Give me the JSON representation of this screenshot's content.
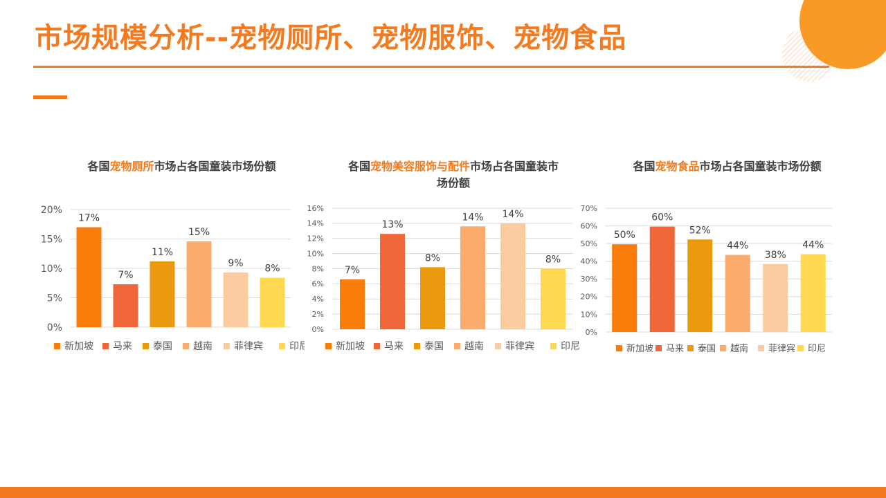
{
  "page": {
    "title": "市场规模分析--宠物厕所、宠物服饰、宠物食品"
  },
  "colors": {
    "accent": "#f47a20",
    "series": [
      "#fa7d0c",
      "#ef6638",
      "#eb9a0d",
      "#fbac6c",
      "#fccca1",
      "#ffd84f"
    ]
  },
  "chart_data": [
    {
      "type": "bar",
      "title_parts": [
        "各国",
        "宠物厕所",
        "市场占各国童装市场份额"
      ],
      "categories": [
        "新加坡",
        "马来",
        "泰国",
        "越南",
        "菲律宾",
        "印尼"
      ],
      "values": [
        17,
        7.3,
        11.2,
        14.6,
        9.3,
        8.4
      ],
      "data_labels": [
        "17%",
        "7%",
        "11%",
        "15%",
        "9%",
        "8%"
      ],
      "yticks": [
        "0%",
        "5%",
        "10%",
        "15%",
        "20%"
      ],
      "ylim": [
        0,
        20
      ],
      "grid": true,
      "legend": "bottom"
    },
    {
      "type": "bar",
      "title_parts": [
        "各国",
        "宠物美容服饰与配件",
        "市场占各国童装市场份额"
      ],
      "categories": [
        "新加坡",
        "马来",
        "泰国",
        "越南",
        "菲律宾",
        "印尼"
      ],
      "values": [
        6.6,
        12.6,
        8.2,
        13.6,
        14,
        8
      ],
      "data_labels": [
        "7%",
        "13%",
        "8%",
        "14%",
        "14%",
        "8%"
      ],
      "yticks": [
        "0%",
        "2%",
        "4%",
        "6%",
        "8%",
        "10%",
        "12%",
        "14%",
        "16%"
      ],
      "ylim": [
        0,
        16
      ],
      "grid": true,
      "legend": "bottom"
    },
    {
      "type": "bar",
      "title_parts": [
        "各国",
        "宠物食品",
        "市场占各国童装市场份额"
      ],
      "categories": [
        "新加坡",
        "马来",
        "泰国",
        "越南",
        "菲律宾",
        "印尼"
      ],
      "values": [
        49.6,
        59.6,
        52.3,
        43.6,
        38.4,
        44
      ],
      "data_labels": [
        "50%",
        "60%",
        "52%",
        "44%",
        "38%",
        "44%"
      ],
      "yticks": [
        "0%",
        "10%",
        "20%",
        "30%",
        "40%",
        "50%",
        "60%",
        "70%"
      ],
      "ylim": [
        0,
        70
      ],
      "grid": true,
      "legend": "bottom"
    }
  ]
}
